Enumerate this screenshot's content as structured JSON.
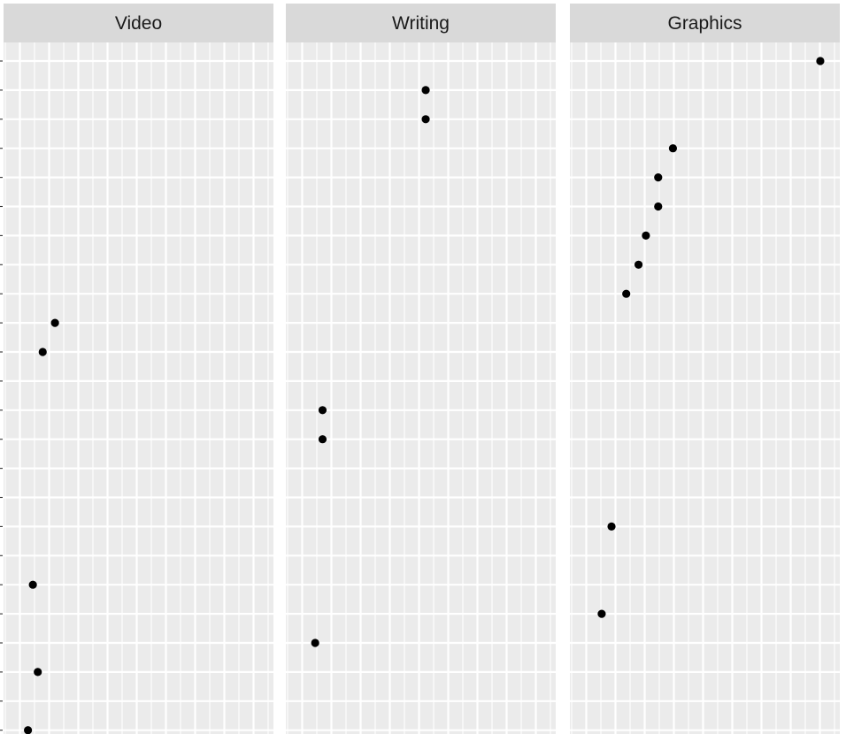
{
  "chart_data": {
    "type": "scatter",
    "facets": [
      {
        "label": "Video",
        "points": [
          {
            "row": 10,
            "x": 0.16
          },
          {
            "row": 11,
            "x": 0.11
          },
          {
            "row": 19,
            "x": 0.07
          },
          {
            "row": 22,
            "x": 0.09
          },
          {
            "row": 24,
            "x": 0.05
          }
        ]
      },
      {
        "label": "Writing",
        "points": [
          {
            "row": 2,
            "x": 0.52
          },
          {
            "row": 3,
            "x": 0.52
          },
          {
            "row": 13,
            "x": 0.1
          },
          {
            "row": 14,
            "x": 0.1
          },
          {
            "row": 21,
            "x": 0.07
          }
        ]
      },
      {
        "label": "Graphics",
        "points": [
          {
            "row": 1,
            "x": 0.97
          },
          {
            "row": 4,
            "x": 0.37
          },
          {
            "row": 5,
            "x": 0.31
          },
          {
            "row": 6,
            "x": 0.31
          },
          {
            "row": 7,
            "x": 0.26
          },
          {
            "row": 8,
            "x": 0.23
          },
          {
            "row": 9,
            "x": 0.18
          },
          {
            "row": 17,
            "x": 0.12
          },
          {
            "row": 20,
            "x": 0.08
          }
        ]
      }
    ],
    "xlim": [
      0,
      1
    ],
    "y_rows": 24,
    "grid": true,
    "legend": "none"
  }
}
